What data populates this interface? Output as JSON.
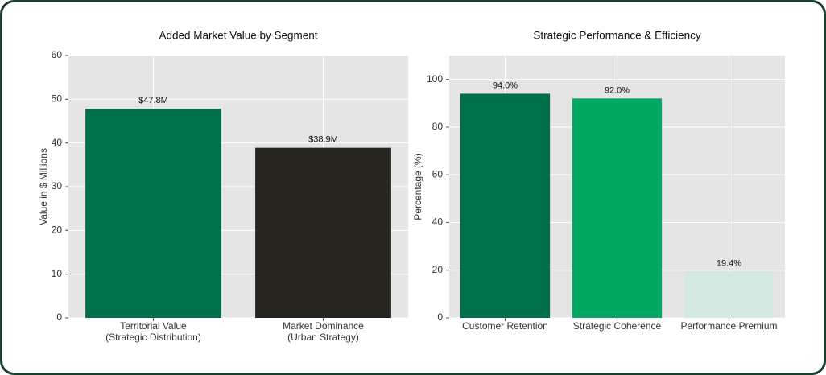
{
  "chart_data": [
    {
      "type": "bar",
      "title": "Added Market Value by Segment",
      "y_label": "Value in $ Millions",
      "categories": [
        [
          "Territorial Value",
          "(Strategic Distribution)"
        ],
        [
          "Market Dominance",
          "(Urban Strategy)"
        ]
      ],
      "values": [
        47.8,
        38.9
      ],
      "value_labels": [
        "$47.8M",
        "$38.9M"
      ],
      "colors": [
        "#00704a",
        "#27251f"
      ],
      "ylim": [
        0,
        60
      ],
      "yticks": [
        0,
        10,
        20,
        30,
        40,
        50,
        60
      ],
      "grid": true
    },
    {
      "type": "bar",
      "title": "Strategic Performance & Efficiency",
      "y_label": "Percentage (%)",
      "categories": [
        [
          "Customer Retention"
        ],
        [
          "Strategic Coherence"
        ],
        [
          "Performance Premium"
        ]
      ],
      "values": [
        94.0,
        92.0,
        19.4
      ],
      "value_labels": [
        "94.0%",
        "92.0%",
        "19.4%"
      ],
      "colors": [
        "#00704a",
        "#00a862",
        "#d4e9e2"
      ],
      "ylim": [
        0,
        110
      ],
      "yticks": [
        0,
        20,
        40,
        60,
        80,
        100
      ],
      "grid": true
    }
  ]
}
